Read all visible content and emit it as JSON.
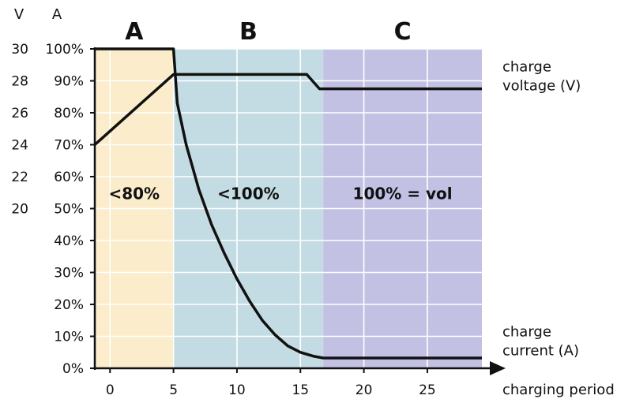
{
  "chart_data": {
    "type": "line",
    "title": "",
    "xlabel": "charging period",
    "x_ticks": [
      "0",
      "5",
      "10",
      "15",
      "20",
      "25"
    ],
    "xlim": [
      -1.2,
      29.3
    ],
    "left_axis": {
      "header": "A",
      "ticks": [
        "0%",
        "10%",
        "20%",
        "30%",
        "40%",
        "50%",
        "60%",
        "70%",
        "80%",
        "90%",
        "100%"
      ],
      "range": [
        0,
        100
      ]
    },
    "voltage_axis": {
      "header": "V",
      "ticks": [
        "20",
        "22",
        "24",
        "26",
        "28",
        "30"
      ],
      "range": [
        20,
        30
      ]
    },
    "grid": true,
    "phases": [
      {
        "name": "A",
        "x_range": [
          -1.2,
          5
        ],
        "color": "#fbeccb",
        "region_text": "<80%"
      },
      {
        "name": "B",
        "x_range": [
          5,
          16.8
        ],
        "color": "#c3dbe3",
        "region_text": "<100%"
      },
      {
        "name": "C",
        "x_range": [
          16.8,
          29.3
        ],
        "color": "#c2c1e3",
        "region_text": "100% = vol"
      }
    ],
    "series": [
      {
        "name": "charge voltage (V)",
        "points": [
          [
            -1.2,
            70
          ],
          [
            5,
            92
          ],
          [
            15.5,
            92
          ],
          [
            16.5,
            87.5
          ],
          [
            29.3,
            87.5
          ]
        ]
      },
      {
        "name": "charge current (A)",
        "points": [
          [
            -1.2,
            100
          ],
          [
            5,
            100
          ],
          [
            5.3,
            83
          ],
          [
            6,
            70
          ],
          [
            7,
            56
          ],
          [
            8,
            45
          ],
          [
            9,
            36
          ],
          [
            10,
            28
          ],
          [
            11,
            21
          ],
          [
            12,
            15
          ],
          [
            13,
            10.5
          ],
          [
            14,
            7
          ],
          [
            15,
            5
          ],
          [
            16,
            3.8
          ],
          [
            16.8,
            3.2
          ],
          [
            29.3,
            3.2
          ]
        ]
      }
    ],
    "series_labels": [
      {
        "series": "charge voltage (V)",
        "lines": [
          "charge",
          "voltage (V)"
        ]
      },
      {
        "series": "charge current (A)",
        "lines": [
          "charge",
          "current (A)"
        ]
      }
    ]
  }
}
